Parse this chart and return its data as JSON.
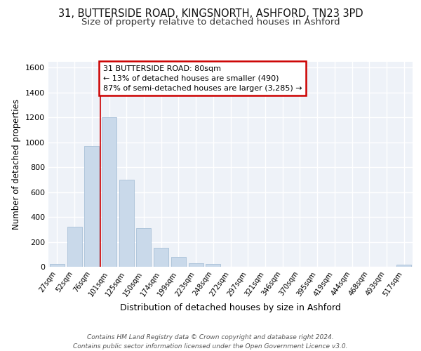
{
  "title_line1": "31, BUTTERSIDE ROAD, KINGSNORTH, ASHFORD, TN23 3PD",
  "title_line2": "Size of property relative to detached houses in Ashford",
  "xlabel": "Distribution of detached houses by size in Ashford",
  "ylabel": "Number of detached properties",
  "categories": [
    "27sqm",
    "52sqm",
    "76sqm",
    "101sqm",
    "125sqm",
    "150sqm",
    "174sqm",
    "199sqm",
    "223sqm",
    "248sqm",
    "272sqm",
    "297sqm",
    "321sqm",
    "346sqm",
    "370sqm",
    "395sqm",
    "419sqm",
    "444sqm",
    "468sqm",
    "493sqm",
    "517sqm"
  ],
  "values": [
    25,
    320,
    970,
    1200,
    700,
    310,
    150,
    80,
    30,
    20,
    0,
    0,
    0,
    0,
    0,
    0,
    0,
    0,
    0,
    0,
    15
  ],
  "bar_color": "#c9d9ea",
  "bar_edge_color": "#a8c0d8",
  "vline_color": "#cc0000",
  "annotation_text": "31 BUTTERSIDE ROAD: 80sqm\n← 13% of detached houses are smaller (490)\n87% of semi-detached houses are larger (3,285) →",
  "annotation_box_color": "#ffffff",
  "annotation_edge_color": "#cc0000",
  "ylim": [
    0,
    1650
  ],
  "yticks": [
    0,
    200,
    400,
    600,
    800,
    1000,
    1200,
    1400,
    1600
  ],
  "background_color": "#eef2f8",
  "grid_color": "#ffffff",
  "footer": "Contains HM Land Registry data © Crown copyright and database right 2024.\nContains public sector information licensed under the Open Government Licence v3.0.",
  "title_fontsize": 10.5,
  "subtitle_fontsize": 9.5,
  "bar_width": 0.85
}
